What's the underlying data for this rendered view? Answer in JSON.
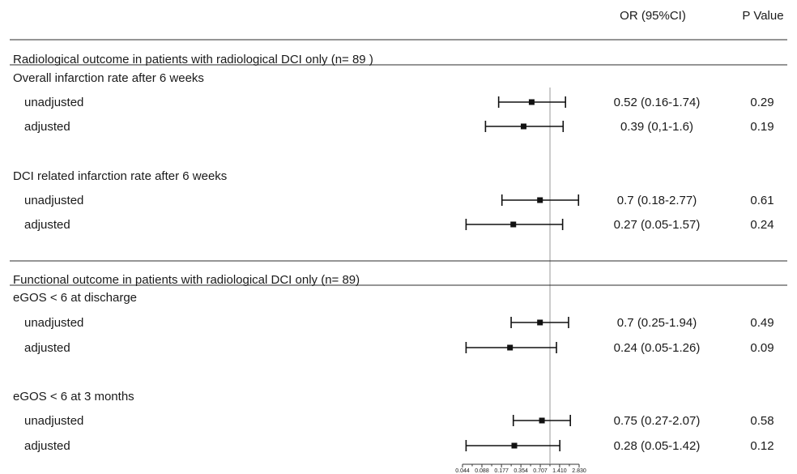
{
  "header": {
    "or_label": "OR (95%CI)",
    "p_label": "P Value"
  },
  "chart_data": {
    "type": "forest",
    "scale": "log",
    "reference_value": 1,
    "axis_ticks": [
      0.044,
      0.088,
      0.177,
      0.354,
      0.707,
      1.41,
      2.83
    ],
    "axis_tick_labels": [
      "0.044",
      "0.088",
      "0.177",
      "0.354",
      "0.707",
      "1.410",
      "2.830"
    ],
    "sections": [
      {
        "title": "Radiological outcome in patients with radiological DCI only (n= 89 )",
        "groups": [
          {
            "label": "Overall infarction rate after 6 weeks",
            "rows": [
              {
                "label": "unadjusted",
                "or": 0.52,
                "lo": 0.16,
                "hi": 1.74,
                "or_text": "0.52 (0.16-1.74)",
                "p": "0.29"
              },
              {
                "label": "adjusted",
                "or": 0.39,
                "lo": 0.1,
                "hi": 1.6,
                "or_text": "0.39 (0,1-1.6)",
                "p": "0.19"
              }
            ]
          },
          {
            "label": "DCI related infarction rate after 6 weeks",
            "rows": [
              {
                "label": "unadjusted",
                "or": 0.7,
                "lo": 0.18,
                "hi": 2.77,
                "or_text": "0.7 (0.18-2.77)",
                "p": "0.61"
              },
              {
                "label": "adjusted",
                "or": 0.27,
                "lo": 0.05,
                "hi": 1.57,
                "or_text": "0.27 (0.05-1.57)",
                "p": "0.24"
              }
            ]
          }
        ]
      },
      {
        "title": "Functional outcome in patients with radiological DCI only (n= 89)",
        "groups": [
          {
            "label": "eGOS < 6 at discharge",
            "rows": [
              {
                "label": "unadjusted",
                "or": 0.7,
                "lo": 0.25,
                "hi": 1.94,
                "or_text": "0.7 (0.25-1.94)",
                "p": "0.49"
              },
              {
                "label": "adjusted",
                "or": 0.24,
                "lo": 0.05,
                "hi": 1.26,
                "or_text": "0.24 (0.05-1.26)",
                "p": "0.09"
              }
            ]
          },
          {
            "label": "eGOS < 6 at 3 months",
            "rows": [
              {
                "label": "unadjusted",
                "or": 0.75,
                "lo": 0.27,
                "hi": 2.07,
                "or_text": "0.75 (0.27-2.07)",
                "p": "0.58"
              },
              {
                "label": "adjusted",
                "or": 0.28,
                "lo": 0.05,
                "hi": 1.42,
                "or_text": "0.28 (0.05-1.42)",
                "p": "0.12"
              }
            ]
          }
        ]
      }
    ]
  }
}
